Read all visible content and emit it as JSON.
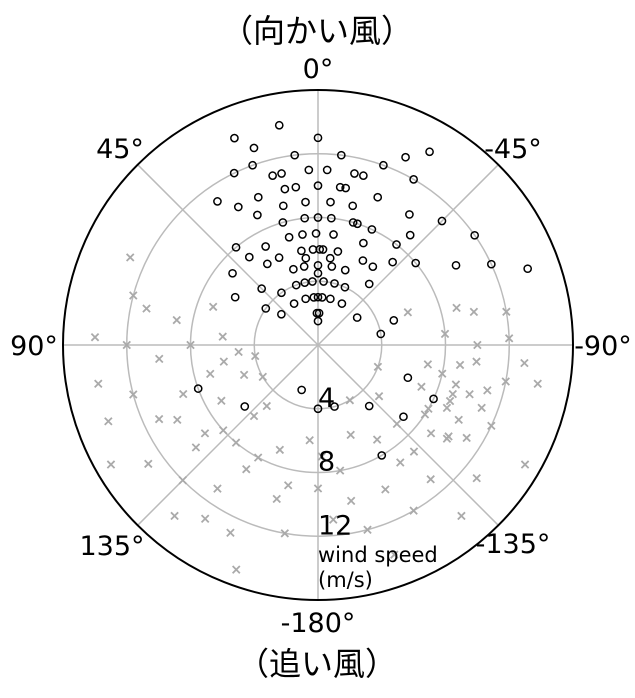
{
  "chart_data": {
    "type": "scatter",
    "projection": "polar",
    "title_top": "（向かい風）",
    "title_bottom": "（追い風）",
    "theta_zero": "top",
    "theta_direction": "counterclockwise",
    "angle_ticks": [
      {
        "deg": 0,
        "label": "0°"
      },
      {
        "deg": 45,
        "label": "45°"
      },
      {
        "deg": 90,
        "label": "90°"
      },
      {
        "deg": 135,
        "label": "135°"
      },
      {
        "deg": 180,
        "label": "-180°"
      },
      {
        "deg": -135,
        "label": "-135°"
      },
      {
        "deg": -90,
        "label": "-90°"
      },
      {
        "deg": -45,
        "label": "-45°"
      }
    ],
    "radial_ticks": [
      {
        "r": 4,
        "label": "4"
      },
      {
        "r": 8,
        "label": "8"
      },
      {
        "r": 12,
        "label": "12"
      }
    ],
    "r_max": 16,
    "radial_label_line1": "wind speed",
    "radial_label_line2": "(m/s)",
    "grid": true,
    "series": [
      {
        "marker": "circle",
        "color": "#000000",
        "points": [
          [
            20,
            12
          ],
          [
            18,
            13
          ],
          [
            15,
            11
          ],
          [
            22,
            14
          ],
          [
            12,
            10
          ],
          [
            5,
            9
          ],
          [
            0,
            8
          ],
          [
            -5,
            9
          ],
          [
            -10,
            10
          ],
          [
            -15,
            11
          ],
          [
            -20,
            12
          ],
          [
            -25,
            13
          ],
          [
            -30,
            12
          ],
          [
            8,
            7
          ],
          [
            -8,
            7
          ],
          [
            3,
            6
          ],
          [
            -3,
            6
          ],
          [
            10,
            6
          ],
          [
            -12,
            6
          ],
          [
            15,
            7
          ],
          [
            -18,
            8
          ],
          [
            25,
            9
          ],
          [
            -25,
            8
          ],
          [
            30,
            10
          ],
          [
            -35,
            10
          ],
          [
            0,
            5
          ],
          [
            5,
            4
          ],
          [
            -5,
            4
          ],
          [
            10,
            5
          ],
          [
            -10,
            5
          ],
          [
            0,
            3
          ],
          [
            5,
            3
          ],
          [
            -5,
            3
          ],
          [
            2,
            2
          ],
          [
            -2,
            2
          ],
          [
            0,
            1.5
          ],
          [
            -40,
            9
          ],
          [
            -45,
            11
          ],
          [
            -55,
            12
          ],
          [
            -60,
            10
          ],
          [
            40,
            8
          ],
          [
            35,
            11
          ],
          [
            28,
            7
          ],
          [
            -28,
            6
          ],
          [
            18,
            5
          ],
          [
            -20,
            5
          ],
          [
            12,
            4
          ],
          [
            -15,
            4
          ],
          [
            0,
            10
          ],
          [
            3,
            11
          ],
          [
            -3,
            11
          ],
          [
            7,
            12
          ],
          [
            -7,
            12
          ],
          [
            0,
            13
          ],
          [
            10,
            14
          ],
          [
            -50,
            8
          ],
          [
            -65,
            12
          ],
          [
            -70,
            14
          ],
          [
            60,
            6
          ],
          [
            50,
            7
          ],
          [
            -110,
            6
          ],
          [
            -115,
            8
          ],
          [
            -130,
            7
          ],
          [
            -140,
            5
          ],
          [
            110,
            8
          ],
          [
            130,
            6
          ],
          [
            160,
            3
          ],
          [
            -165,
            4
          ],
          [
            180,
            4
          ],
          [
            -150,
            8
          ],
          [
            -72,
            5
          ],
          [
            -80,
            4
          ],
          [
            45,
            5
          ],
          [
            55,
            4
          ],
          [
            -35,
            6
          ],
          [
            32,
            6
          ],
          [
            -42,
            7
          ],
          [
            22,
            10
          ],
          [
            -22,
            10
          ],
          [
            14,
            9
          ],
          [
            -14,
            9
          ],
          [
            6,
            8
          ],
          [
            -6,
            8
          ],
          [
            1,
            7
          ],
          [
            -1,
            6
          ],
          [
            16,
            8
          ],
          [
            -16,
            8
          ],
          [
            24,
            6
          ],
          [
            -24,
            7
          ],
          [
            38,
            7
          ],
          [
            -38,
            8
          ],
          [
            8,
            10
          ],
          [
            -8,
            10
          ],
          [
            12,
            11
          ],
          [
            -12,
            11
          ],
          [
            26,
            12
          ],
          [
            -30,
            14
          ],
          [
            20,
            4
          ],
          [
            -25,
            4
          ],
          [
            35,
            4
          ],
          [
            -40,
            5
          ],
          [
            50,
            3
          ],
          [
            -55,
            3
          ],
          [
            0,
            4.5
          ],
          [
            8,
            5.5
          ],
          [
            -8,
            5.5
          ],
          [
            15,
            3
          ],
          [
            -15,
            3
          ],
          [
            30,
            3
          ],
          [
            -30,
            3
          ]
        ]
      },
      {
        "marker": "x",
        "color": "#aaaaaa",
        "points": [
          [
            90,
            8
          ],
          [
            95,
            10
          ],
          [
            100,
            6
          ],
          [
            105,
            12
          ],
          [
            110,
            9
          ],
          [
            115,
            11
          ],
          [
            120,
            7
          ],
          [
            125,
            13
          ],
          [
            130,
            10
          ],
          [
            135,
            12
          ],
          [
            140,
            8
          ],
          [
            145,
            11
          ],
          [
            150,
            9
          ],
          [
            155,
            13
          ],
          [
            160,
            7
          ],
          [
            165,
            10
          ],
          [
            170,
            12
          ],
          [
            175,
            6
          ],
          [
            180,
            9
          ],
          [
            -175,
            11
          ],
          [
            -170,
            8
          ],
          [
            -165,
            12
          ],
          [
            -160,
            6
          ],
          [
            -155,
            10
          ],
          [
            -150,
            12
          ],
          [
            -145,
            9
          ],
          [
            -140,
            11
          ],
          [
            -135,
            7
          ],
          [
            -130,
            13
          ],
          [
            -125,
            10
          ],
          [
            -120,
            8
          ],
          [
            -115,
            12
          ],
          [
            -110,
            9
          ],
          [
            -105,
            11
          ],
          [
            -100,
            7
          ],
          [
            -95,
            13
          ],
          [
            -90,
            10
          ],
          [
            -85,
            8
          ],
          [
            -80,
            12
          ],
          [
            -75,
            9
          ],
          [
            -70,
            6
          ],
          [
            85,
            6
          ],
          [
            80,
            9
          ],
          [
            75,
            12
          ],
          [
            70,
            7
          ],
          [
            65,
            13
          ],
          [
            100,
            14
          ],
          [
            110,
            14
          ],
          [
            120,
            15
          ],
          [
            140,
            14
          ],
          [
            160,
            15
          ],
          [
            -160,
            14
          ],
          [
            -140,
            14
          ],
          [
            -120,
            15
          ],
          [
            -100,
            14
          ],
          [
            100,
            4
          ],
          [
            120,
            4
          ],
          [
            140,
            5
          ],
          [
            -110,
            4
          ],
          [
            -130,
            5
          ],
          [
            -150,
            4
          ],
          [
            90,
            12
          ],
          [
            105,
            7
          ],
          [
            118,
            10
          ],
          [
            128,
            9
          ],
          [
            138,
            6
          ],
          [
            152,
            8
          ],
          [
            168,
            9
          ],
          [
            -178,
            7
          ],
          [
            -168,
            10
          ],
          [
            -148,
            7
          ],
          [
            -138,
            9
          ],
          [
            -122,
            11
          ],
          [
            -112,
            7
          ],
          [
            -98,
            9
          ],
          [
            -88,
            12
          ],
          [
            -78,
            10
          ],
          [
            78,
            11
          ],
          [
            88,
            14
          ],
          [
            95,
            5
          ],
          [
            112,
            5
          ],
          [
            132,
            8
          ],
          [
            147,
            13
          ],
          [
            -128,
            9
          ],
          [
            -118,
            10
          ],
          [
            -108,
            10
          ],
          [
            -103,
            8
          ],
          [
            -113,
            9
          ],
          [
            -123,
            8
          ],
          [
            -106,
            9
          ],
          [
            -116,
            9
          ],
          [
            -126,
            10
          ],
          [
            -96,
            10
          ],
          [
            -111,
            11
          ],
          [
            -101,
            12
          ]
        ]
      }
    ]
  }
}
